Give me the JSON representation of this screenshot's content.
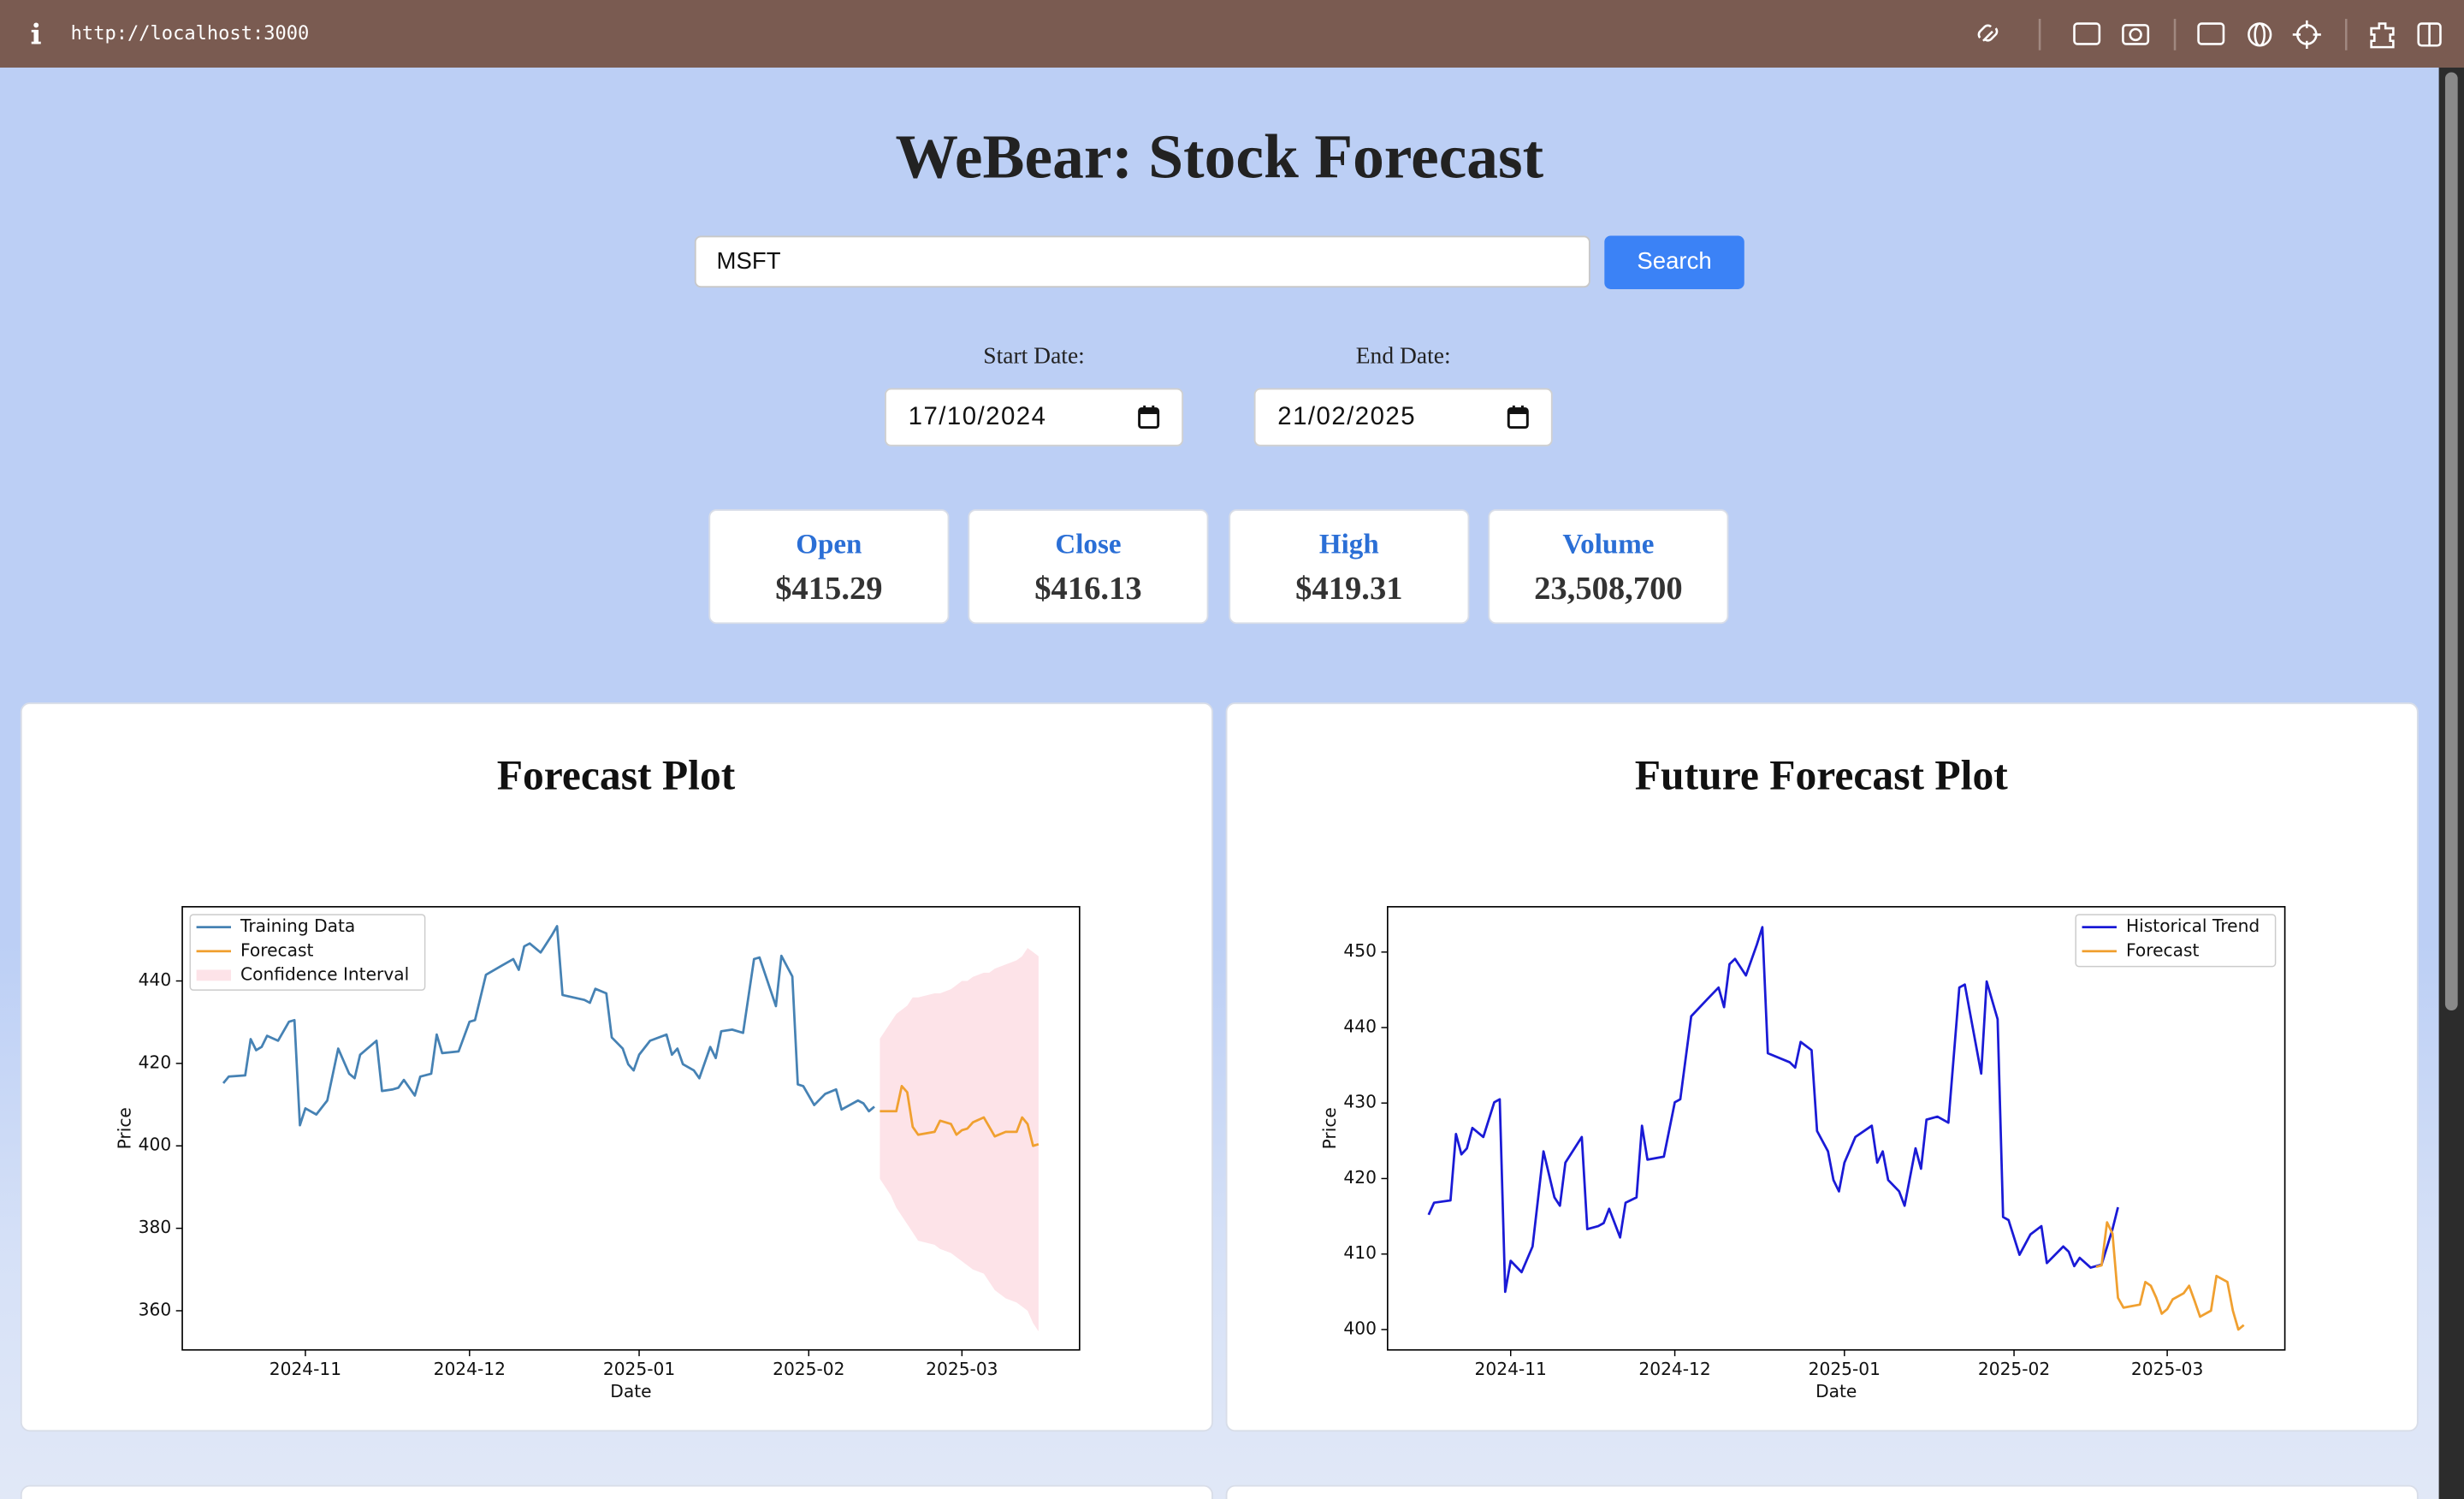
{
  "browser": {
    "url": "http://localhost:3000"
  },
  "header": {
    "title": "WeBear: Stock Forecast"
  },
  "search": {
    "value": "MSFT",
    "button": "Search"
  },
  "dates": [
    {
      "label": "Start Date:",
      "value": "17/10/2024"
    },
    {
      "label": "End Date:",
      "value": "21/02/2025"
    }
  ],
  "stats": [
    {
      "label": "Open",
      "value": "$415.29"
    },
    {
      "label": "Close",
      "value": "$416.13"
    },
    {
      "label": "High",
      "value": "$419.31"
    },
    {
      "label": "Volume",
      "value": "23,508,700"
    }
  ],
  "chart_data": [
    {
      "type": "line",
      "title": "Forecast Plot",
      "x_label": "Date",
      "y_label": "Price",
      "xlim": [
        8.5,
        172.5
      ],
      "ylim": [
        350.5,
        458
      ],
      "xticks": [
        {
          "value": 31,
          "label": "2024-11"
        },
        {
          "value": 61,
          "label": "2024-12"
        },
        {
          "value": 92,
          "label": "2025-01"
        },
        {
          "value": 123,
          "label": "2025-02"
        },
        {
          "value": 151,
          "label": "2025-03"
        }
      ],
      "yticks": [
        360,
        380,
        400,
        420,
        440
      ],
      "grid": false,
      "legend": "upper left",
      "series": [
        {
          "name": "Training Data",
          "color": "#4682b4",
          "x": [
            16,
            17,
            20,
            21,
            22,
            23,
            24,
            26,
            28,
            29,
            30,
            31,
            33,
            35,
            37,
            39,
            40,
            41,
            44,
            45,
            47,
            48,
            49,
            51,
            52,
            54,
            55,
            56,
            59,
            61,
            62,
            64,
            67,
            69,
            70,
            71,
            72,
            74,
            76,
            77,
            78,
            82,
            83,
            84,
            86,
            87,
            89,
            90,
            91,
            92,
            94,
            97,
            98,
            99,
            100,
            102,
            103,
            105,
            106,
            107,
            109,
            111,
            113,
            114,
            117,
            118,
            120,
            121,
            122,
            124,
            126,
            128,
            129,
            132,
            133,
            134,
            135
          ],
          "values": [
            415.2,
            416.8,
            417.1,
            425.9,
            423.2,
            424,
            426.7,
            425.5,
            430.1,
            430.5,
            405,
            409.1,
            407.6,
            411,
            423.6,
            417.5,
            416.4,
            422.1,
            425.5,
            413.3,
            413.7,
            414.1,
            416,
            412.2,
            416.8,
            417.5,
            427,
            422.5,
            422.9,
            430.1,
            430.5,
            441.5,
            443.8,
            445.3,
            442.7,
            448.4,
            449.1,
            446.9,
            451,
            453.3,
            436.6,
            435.4,
            434.7,
            438.1,
            437,
            426.3,
            423.6,
            419.8,
            418.3,
            422.1,
            425.5,
            427,
            422.1,
            423.6,
            419.8,
            418.3,
            416.4,
            424,
            421.3,
            427.8,
            428.2,
            427.4,
            445.3,
            445.7,
            433.9,
            446.1,
            441.1,
            414.9,
            414.5,
            409.9,
            412.6,
            413.7,
            408.8,
            411,
            410.3,
            408.4,
            409.5
          ]
        },
        {
          "name": "Forecast",
          "color": "#f0a030",
          "x": [
            136,
            138,
            139,
            140,
            141,
            142,
            143,
            146,
            147,
            149,
            150,
            151,
            152,
            153,
            155,
            156,
            157,
            159,
            161,
            162,
            163,
            164,
            165
          ],
          "values": [
            408.4,
            408.4,
            408.4,
            414.5,
            413,
            404.6,
            402.7,
            403.4,
            406.1,
            405.3,
            402.7,
            403.8,
            404.2,
            405.7,
            406.9,
            404.6,
            402.3,
            403.4,
            403.4,
            406.9,
            405.3,
            400,
            400.4
          ]
        },
        {
          "name": "Confidence Interval",
          "color": "#fde3e8",
          "x": [
            136,
            138,
            139,
            140,
            141,
            142,
            143,
            146,
            147,
            149,
            150,
            151,
            152,
            153,
            155,
            156,
            157,
            159,
            161,
            162,
            163,
            164,
            165
          ],
          "upper": [
            426,
            430,
            432,
            433,
            434,
            436,
            436,
            437,
            437,
            438,
            439,
            440,
            440,
            441,
            442,
            442,
            443,
            444,
            445,
            446,
            448,
            447,
            446
          ],
          "lower": [
            392,
            388,
            385,
            383,
            381,
            379,
            377,
            376,
            375,
            374,
            373,
            372,
            371,
            370,
            369,
            367,
            365,
            363,
            362,
            361,
            360,
            357,
            355
          ]
        }
      ]
    },
    {
      "type": "line",
      "title": "Future Forecast Plot",
      "x_label": "Date",
      "y_label": "Price",
      "xlim": [
        8.5,
        172.5
      ],
      "ylim": [
        397.3,
        456
      ],
      "xticks": [
        {
          "value": 31,
          "label": "2024-11"
        },
        {
          "value": 61,
          "label": "2024-12"
        },
        {
          "value": 92,
          "label": "2025-01"
        },
        {
          "value": 123,
          "label": "2025-02"
        },
        {
          "value": 151,
          "label": "2025-03"
        }
      ],
      "yticks": [
        400,
        410,
        420,
        430,
        440,
        450
      ],
      "grid": false,
      "legend": "upper right",
      "series": [
        {
          "name": "Historical Trend",
          "color": "#1a1ad6",
          "x": [
            16,
            17,
            20,
            21,
            22,
            23,
            24,
            26,
            28,
            29,
            30,
            31,
            33,
            35,
            37,
            39,
            40,
            41,
            44,
            45,
            47,
            48,
            49,
            51,
            52,
            54,
            55,
            56,
            59,
            61,
            62,
            64,
            67,
            69,
            70,
            71,
            72,
            74,
            76,
            77,
            78,
            82,
            83,
            84,
            86,
            87,
            89,
            90,
            91,
            92,
            94,
            97,
            98,
            99,
            100,
            102,
            103,
            105,
            106,
            107,
            109,
            111,
            113,
            114,
            117,
            118,
            120,
            121,
            122,
            124,
            126,
            128,
            129,
            132,
            133,
            134,
            135,
            137,
            139,
            141,
            142
          ],
          "values": [
            415.2,
            416.8,
            417.1,
            425.9,
            423.2,
            424,
            426.7,
            425.5,
            430.1,
            430.5,
            405,
            409.1,
            407.6,
            411,
            423.6,
            417.5,
            416.4,
            422.1,
            425.5,
            413.3,
            413.7,
            414.1,
            416,
            412.2,
            416.8,
            417.5,
            427,
            422.5,
            422.9,
            430.1,
            430.5,
            441.5,
            443.8,
            445.3,
            442.7,
            448.4,
            449.1,
            446.9,
            451,
            453.3,
            436.6,
            435.4,
            434.7,
            438.1,
            437,
            426.3,
            423.6,
            419.8,
            418.3,
            422.1,
            425.5,
            427,
            422.1,
            423.6,
            419.8,
            418.3,
            416.4,
            424,
            421.3,
            427.8,
            428.2,
            427.4,
            445.3,
            445.7,
            433.9,
            446.1,
            441.1,
            414.9,
            414.5,
            409.9,
            412.6,
            413.7,
            408.8,
            411,
            410.3,
            408.4,
            409.5,
            408.2,
            408.6,
            413.3,
            416.2
          ]
        },
        {
          "name": "Forecast",
          "color": "#f0a030",
          "x": [
            138,
            139,
            140,
            141,
            142,
            143,
            146,
            147,
            148,
            149,
            150,
            151,
            152,
            154,
            155,
            156,
            157,
            159,
            160,
            162,
            163,
            164,
            165
          ],
          "values": [
            408.3,
            408.5,
            414.2,
            412.7,
            404.2,
            402.9,
            403.3,
            406.3,
            405.8,
            404.2,
            402.1,
            402.7,
            404,
            404.8,
            405.8,
            403.8,
            401.7,
            402.5,
            407.1,
            406.3,
            402.5,
            400,
            400.6
          ]
        }
      ]
    }
  ]
}
